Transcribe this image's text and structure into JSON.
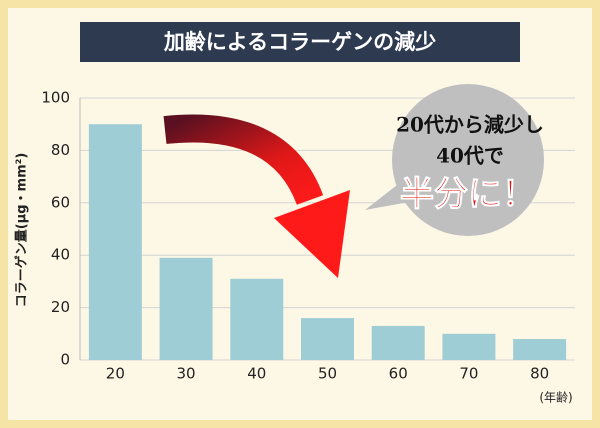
{
  "chart_data": {
    "type": "bar",
    "title": "加齢によるコラーゲンの減少",
    "y_label": "コラーゲン量(μg・mm²)",
    "x_unit": "(年齢)",
    "categories": [
      "20",
      "30",
      "40",
      "50",
      "60",
      "70",
      "80"
    ],
    "values": [
      90,
      39,
      31,
      16,
      13,
      10,
      8
    ],
    "color": "#9ecdd6",
    "ylim": [
      0,
      100
    ],
    "yticks": [
      0,
      20,
      40,
      60,
      80,
      100
    ],
    "grid": true,
    "annotations": [
      "20代から減少し",
      "40代で",
      "半分に！"
    ]
  }
}
